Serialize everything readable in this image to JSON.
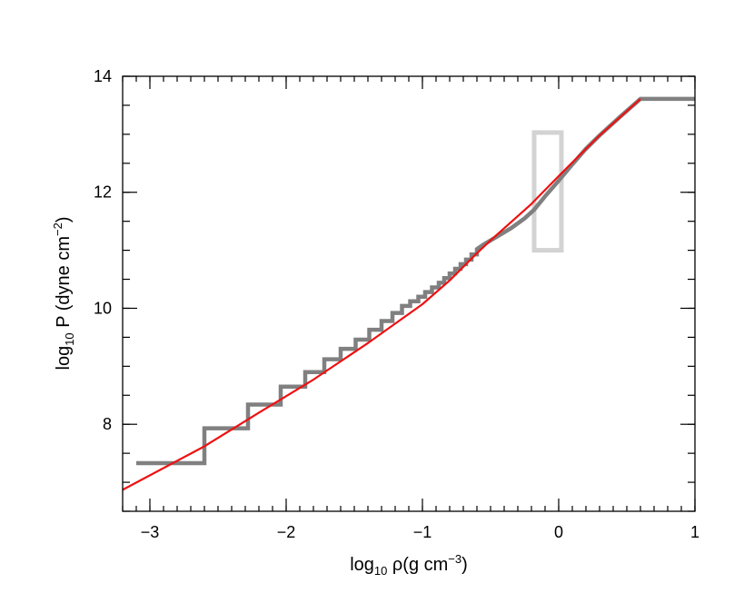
{
  "chart_data": {
    "type": "line",
    "title": "",
    "xlabel": {
      "prefix": "log",
      "sub": "10",
      "main": " ρ(g cm",
      "sup": "−3",
      "suffix": ")"
    },
    "ylabel": {
      "prefix": "log",
      "sub": "10",
      "main": " P (dyne cm",
      "sup": "−2",
      "suffix": ")"
    },
    "xlim": [
      -3.2,
      1.0
    ],
    "ylim": [
      6.5,
      14.0
    ],
    "x_ticks": [
      {
        "value": -3,
        "label": "−3"
      },
      {
        "value": -2,
        "label": "−2"
      },
      {
        "value": -1,
        "label": "−1"
      },
      {
        "value": 0,
        "label": "0"
      },
      {
        "value": 1,
        "label": "1"
      }
    ],
    "y_ticks": [
      {
        "value": 8,
        "label": "8"
      },
      {
        "value": 10,
        "label": "10"
      },
      {
        "value": 12,
        "label": "12"
      },
      {
        "value": 14,
        "label": "14"
      }
    ],
    "x_minor_step": 0.1,
    "y_minor_step": 0.5,
    "grid": false,
    "series": [
      {
        "style": "step",
        "color": "#808080",
        "points": [
          [
            -3.1,
            7.33
          ],
          [
            -2.6,
            7.33
          ],
          [
            -2.6,
            7.93
          ],
          [
            -2.28,
            7.93
          ],
          [
            -2.28,
            8.34
          ],
          [
            -2.04,
            8.34
          ],
          [
            -2.04,
            8.65
          ],
          [
            -1.86,
            8.65
          ],
          [
            -1.86,
            8.9
          ],
          [
            -1.72,
            8.9
          ],
          [
            -1.72,
            9.12
          ],
          [
            -1.6,
            9.12
          ],
          [
            -1.6,
            9.3
          ],
          [
            -1.49,
            9.3
          ],
          [
            -1.49,
            9.46
          ],
          [
            -1.39,
            9.46
          ],
          [
            -1.39,
            9.63
          ],
          [
            -1.3,
            9.63
          ],
          [
            -1.3,
            9.78
          ],
          [
            -1.22,
            9.78
          ],
          [
            -1.22,
            9.92
          ],
          [
            -1.15,
            9.92
          ],
          [
            -1.15,
            10.04
          ],
          [
            -1.09,
            10.04
          ],
          [
            -1.09,
            10.12
          ],
          [
            -1.03,
            10.12
          ],
          [
            -1.03,
            10.2
          ],
          [
            -0.98,
            10.2
          ],
          [
            -0.98,
            10.28
          ],
          [
            -0.93,
            10.28
          ],
          [
            -0.93,
            10.36
          ],
          [
            -0.88,
            10.36
          ],
          [
            -0.88,
            10.44
          ],
          [
            -0.84,
            10.44
          ],
          [
            -0.84,
            10.52
          ],
          [
            -0.8,
            10.52
          ],
          [
            -0.8,
            10.6
          ],
          [
            -0.76,
            10.6
          ],
          [
            -0.76,
            10.68
          ],
          [
            -0.72,
            10.68
          ],
          [
            -0.72,
            10.76
          ],
          [
            -0.68,
            10.76
          ],
          [
            -0.68,
            10.84
          ],
          [
            -0.64,
            10.84
          ],
          [
            -0.64,
            10.93
          ],
          [
            -0.6,
            10.93
          ],
          [
            -0.6,
            11.02
          ],
          [
            -0.55,
            11.1
          ],
          [
            -0.45,
            11.24
          ],
          [
            -0.35,
            11.38
          ],
          [
            -0.25,
            11.55
          ],
          [
            -0.18,
            11.7
          ],
          [
            -0.1,
            11.93
          ],
          [
            0.0,
            12.2
          ],
          [
            0.1,
            12.48
          ],
          [
            0.2,
            12.75
          ],
          [
            0.3,
            12.98
          ],
          [
            0.45,
            13.3
          ],
          [
            0.6,
            13.61
          ],
          [
            1.0,
            13.61
          ]
        ]
      },
      {
        "style": "line",
        "color": "#ee1111",
        "points": [
          [
            -3.2,
            6.87
          ],
          [
            -2.6,
            7.62
          ],
          [
            -2.2,
            8.2
          ],
          [
            -1.8,
            8.77
          ],
          [
            -1.4,
            9.4
          ],
          [
            -1.0,
            10.07
          ],
          [
            -0.8,
            10.48
          ],
          [
            -0.6,
            10.95
          ],
          [
            -0.5,
            11.17
          ],
          [
            -0.2,
            11.8
          ],
          [
            0.0,
            12.28
          ],
          [
            0.3,
            12.98
          ],
          [
            0.6,
            13.61
          ]
        ]
      }
    ],
    "annotation_box": {
      "x": [
        -0.18,
        0.02
      ],
      "y": [
        11.0,
        13.03
      ],
      "color": "#d3d3d3"
    }
  }
}
